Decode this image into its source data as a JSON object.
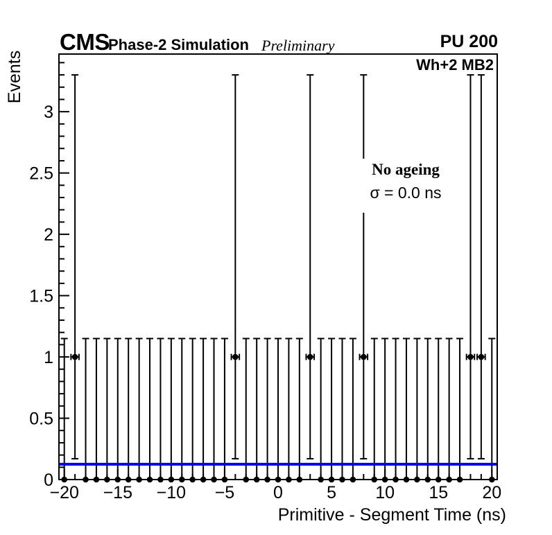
{
  "header": {
    "experiment": "CMS",
    "subtitle": "Phase-2 Simulation",
    "status": "Preliminary",
    "pileup": "PU 200"
  },
  "plot_region_label": "Wh+2 MB2",
  "annotation": {
    "line1": "No ageing",
    "line2": "σ = 0.0 ns"
  },
  "colors": {
    "marker": "#000000",
    "frame": "#000000",
    "mean_line": "#0000f0"
  },
  "chart_data": {
    "type": "scatter",
    "title": "",
    "xlabel": "Primitive - Segment Time (ns)",
    "ylabel": "Events",
    "xlim": [
      -20.5,
      20.5
    ],
    "ylim": [
      0,
      3.47
    ],
    "grid": "off",
    "legend": "none",
    "x_major_ticks": {
      "values": [
        -20,
        -15,
        -10,
        -5,
        0,
        5,
        10,
        15,
        20
      ],
      "labels": [
        "−20",
        "−15",
        "−10",
        "−5",
        "0",
        "5",
        "10",
        "15",
        "20"
      ]
    },
    "x_minor_step": 1,
    "y_major_ticks": {
      "values": [
        0,
        0.5,
        1,
        1.5,
        2,
        2.5,
        3
      ],
      "labels": [
        "0",
        "0.5",
        "1",
        "1.5",
        "2",
        "2.5",
        "3"
      ]
    },
    "y_minor_step": 0.1,
    "series": [
      {
        "name": "bins-with-one-event",
        "marker": "filled-circle",
        "color": "#000000",
        "x": [
          -19,
          -4,
          3,
          8,
          18,
          19
        ],
        "y": 1,
        "yerr_low": 0.83,
        "yerr_up": 2.3,
        "xerr": 0.5,
        "draw_xerr": true,
        "caps": "both"
      },
      {
        "name": "bins-with-zero-events",
        "marker": "filled-circle",
        "color": "#000000",
        "x": [
          -20,
          -18,
          -17,
          -16,
          -15,
          -14,
          -13,
          -12,
          -11,
          -10,
          -9,
          -8,
          -7,
          -6,
          -5,
          -3,
          -2,
          -1,
          0,
          1,
          2,
          4,
          5,
          6,
          7,
          9,
          10,
          11,
          12,
          13,
          14,
          15,
          16,
          17,
          20
        ],
        "y": 0,
        "yerr_low": 0,
        "yerr_up": 1.15,
        "xerr": 0.5,
        "draw_xerr": false,
        "caps": "top"
      }
    ],
    "hline": {
      "y": 0.125,
      "color": "#0000f0",
      "width": 4,
      "name": "mean-line"
    }
  }
}
